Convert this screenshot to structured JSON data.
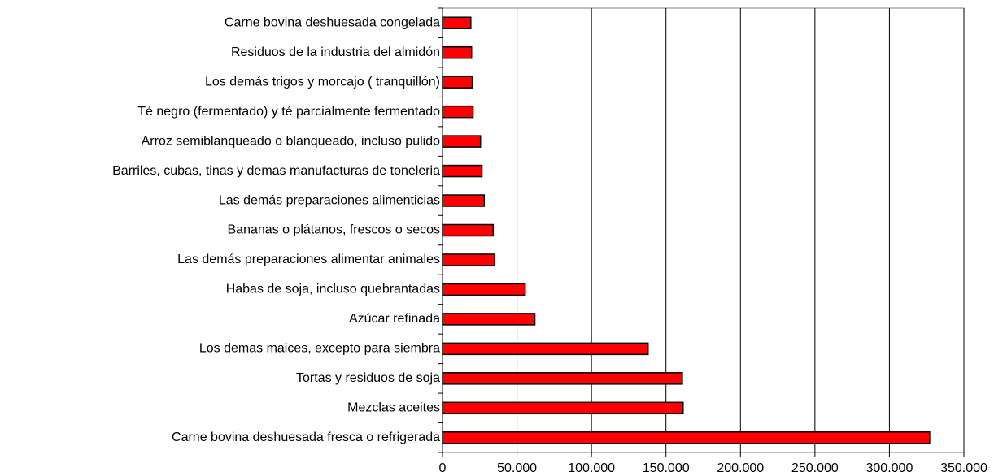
{
  "chart_data": {
    "type": "bar",
    "orientation": "horizontal",
    "categories": [
      "Carne bovina deshuesada congelada",
      "Residuos de la industria del almidón",
      "Los demás trigos y morcajo ( tranquillón)",
      "Té negro (fermentado) y té parcialmente fermentado",
      "Arroz semiblanqueado o blanqueado, incluso pulido",
      "Barriles, cubas, tinas y demas manufacturas de toneleria",
      "Las demás preparaciones alimenticias",
      "Bananas o plátanos, frescos o secos",
      "Las demás preparaciones alimentar animales",
      "Habas de soja, incluso quebrantadas",
      "Azúcar refinada",
      "Los demas maices, excepto para siembra",
      "Tortas y residuos de soja",
      "Mezclas aceites",
      "Carne bovina deshuesada fresca o refrigerada"
    ],
    "values": [
      19000,
      19500,
      20000,
      20500,
      25500,
      26500,
      28000,
      34000,
      35000,
      55500,
      62000,
      138000,
      161000,
      161500,
      327000
    ],
    "color": "#ff0000",
    "xlim": [
      0,
      350000
    ],
    "xticks": [
      0,
      {
        "value": 50000,
        "label": "50.000"
      },
      {
        "value": 100000,
        "label": "100.000"
      },
      {
        "value": 150000,
        "label": "150.000"
      },
      {
        "value": 200000,
        "label": "200.000"
      },
      {
        "value": 250000,
        "label": "250.000"
      },
      {
        "value": 300000,
        "label": "300.000"
      },
      {
        "value": 350000,
        "label": "350.000"
      }
    ],
    "grid": true
  }
}
